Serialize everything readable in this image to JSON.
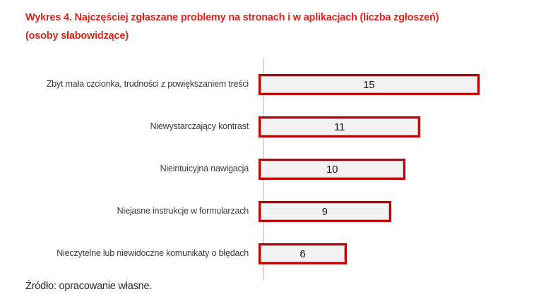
{
  "title": {
    "line1": "Wykres 4. Najczęściej zgłaszane problemy na stronach i w aplikacjach (liczba zgłoszeń)",
    "line2": "(osoby słabowidzące)"
  },
  "source": "Źródło: opracowanie własne.",
  "colors": {
    "title_red": "#D8261E",
    "bar_border_red": "#C00000",
    "bar_fill_gray": "#F2F2F2",
    "axis_gray": "#D9D9D9",
    "text_black": "#1a1a1a"
  },
  "chart_data": {
    "type": "bar",
    "orientation": "horizontal",
    "title": "Wykres 4. Najczęściej zgłaszane problemy na stronach i w aplikacjach (liczba zgłoszeń) (osoby słabowidzące)",
    "categories": [
      "Zbyt mała czcionka, trudności z powiększaniem treści",
      "Niewystarczający kontrast",
      "Nieintuicyjna nawigacja",
      "Niejasne instrukcje w formularzach",
      "Nieczytelne lub niewidoczne komunikaty o błędach"
    ],
    "values": [
      15,
      11,
      10,
      9,
      6
    ],
    "value_labels": [
      "15",
      "11",
      "10",
      "9",
      "6"
    ],
    "xlabel": "",
    "ylabel": "",
    "xlim": [
      0,
      16.8
    ],
    "grid": false,
    "legend": false,
    "data_label_position": "center-inside",
    "source_note": "Źródło: opracowanie własne."
  }
}
